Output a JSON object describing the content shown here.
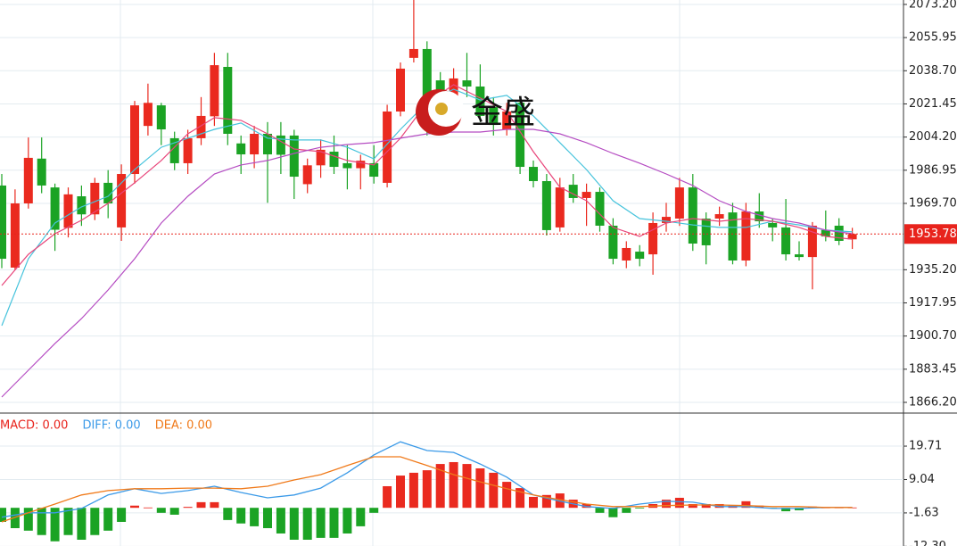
{
  "chart_data": [
    {
      "type": "candlestick",
      "open": [
        1979.0,
        1936.3,
        1969.7,
        1993.0,
        1978.0,
        1957.0,
        1973.4,
        1964.0,
        1980.4,
        1957.2,
        1985.0,
        2010.0,
        2020.7,
        2003.6,
        1990.6,
        2003.6,
        2015.0,
        2040.7,
        2000.9,
        1995.2,
        2005.9,
        2005.0,
        2005.0,
        1979.7,
        1989.5,
        1996.6,
        1990.6,
        1988.0,
        1990.6,
        1980.4,
        2017.5,
        2045.4,
        2050.0,
        2033.7,
        2018.4,
        2033.7,
        2030.5,
        2019.8,
        2008.2,
        2022.1,
        1988.7,
        1981.3,
        1957.2,
        1979.4,
        1972.5,
        1975.7,
        1958.1,
        1940.0,
        1944.6,
        1943.2,
        1959.5,
        1961.8,
        1978.0,
        1961.8,
        1961.8,
        1965.0,
        1940.0,
        1965.5,
        1959.5,
        1957.2,
        1943.2,
        1941.8,
        1955.9,
        1958.1,
        1951.0
      ],
      "high": [
        1985,
        1977,
        2004,
        2004,
        1980,
        1978,
        1979,
        1983,
        1987,
        1990,
        2023,
        2032,
        2022,
        2007,
        2008,
        2025,
        2048,
        2048,
        2005,
        2010,
        2012,
        2012,
        2008,
        1993,
        2003,
        2005,
        2000,
        1995,
        2000,
        2021,
        2043,
        2075.5,
        2054,
        2038,
        2040,
        2048,
        2042,
        2025,
        2022,
        2025,
        1992,
        1985,
        1983,
        1985,
        1980,
        1978,
        1962,
        1950,
        1948,
        1965,
        1970,
        1983,
        1985,
        1965,
        1968,
        1970,
        1970,
        1975,
        1962,
        1972,
        1950,
        1960,
        1966,
        1962,
        1957
      ],
      "low": [
        1936,
        1935,
        1967,
        1975,
        1945,
        1952,
        1958,
        1961,
        1962,
        1950.2,
        1980,
        2005,
        2000,
        1987,
        1985,
        2000,
        2010,
        2000,
        1985,
        1988,
        1970,
        1985,
        1972,
        1975,
        1983,
        1985,
        1977,
        1977,
        1980,
        1978,
        2015,
        2043,
        2005,
        2015,
        2015,
        2025,
        2012,
        2005,
        2005,
        1985,
        1978,
        1953,
        1955,
        1970,
        1958,
        1955,
        1938,
        1936,
        1937,
        1932.6,
        1955,
        1958,
        1945,
        1938,
        1958,
        1938,
        1937,
        1957,
        1950,
        1940,
        1940,
        1925,
        1950,
        1948,
        1946
      ],
      "close": [
        1940.9,
        1969.7,
        1993.4,
        1979.0,
        1956.0,
        1974.4,
        1964.0,
        1980.4,
        1969.7,
        1985.0,
        2020.7,
        2022.0,
        2008.2,
        1990.6,
        2003.6,
        2015.2,
        2041.6,
        2005.9,
        1995.2,
        2005.9,
        1995.2,
        1995.0,
        1983.6,
        1989.5,
        1997.6,
        1988.7,
        1988.0,
        1991.9,
        1983.6,
        2017.5,
        2039.8,
        2050.0,
        2010.5,
        2019.8,
        2034.7,
        2030.5,
        2015.2,
        2010.5,
        2017.5,
        1988.7,
        1981.3,
        1955.8,
        1978.0,
        1972.5,
        1975.7,
        1958.1,
        1940.9,
        1946.5,
        1940.9,
        1959.5,
        1962.7,
        1978.0,
        1948.8,
        1947.9,
        1964.1,
        1940.0,
        1965.5,
        1960.4,
        1957.2,
        1943.2,
        1941.8,
        1958.1,
        1952.5,
        1950.2,
        1953.78
      ],
      "up_color": "#ea2a1f",
      "down_color": "#1ba324",
      "moving_averages": [
        {
          "color": "#46c3dc",
          "values": [
            1906.1,
            1940.9,
            1959.5,
            1967.9,
            1973.4,
            1987.3,
            1998.9,
            2003.6,
            2008.2,
            2011.5,
            2003.6,
            2002.7,
            2002.7,
            1998.9,
            1992.9,
            2008.2,
            2022.1,
            2029.1,
            2023.5,
            2025.9,
            2015.2,
            2001.3,
            1987.3,
            1971.1,
            1961.8,
            1960.4,
            1958.5,
            1957.2,
            1957.2,
            1960.4,
            1958.5,
            1955.8,
            1954.9
          ]
        },
        {
          "color": "#e8457a",
          "values": [
            1927.0,
            1943.2,
            1953.9,
            1960.9,
            1969.7,
            1980.4,
            1992.0,
            2005.9,
            2014.3,
            2012.9,
            2005.9,
            1998.0,
            1996.6,
            1992.0,
            1989.7,
            2003.6,
            2022.1,
            2031.4,
            2024.5,
            2017.5,
            1996.6,
            1978.1,
            1971.1,
            1957.2,
            1952.5,
            1959.5,
            1961.8,
            1960.4,
            1961.8,
            1960.4,
            1957.2,
            1952.5,
            1951.1
          ]
        },
        {
          "color": "#b54cc2",
          "values": [
            1869.0,
            1882.9,
            1896.8,
            1909.8,
            1924.7,
            1940.9,
            1959.5,
            1973.4,
            1985.0,
            1989.7,
            1992.0,
            1995.7,
            1998.9,
            2000.3,
            2001.3,
            2003.6,
            2005.9,
            2006.8,
            2006.8,
            2008.2,
            2008.2,
            2005.9,
            2001.3,
            1995.7,
            1990.6,
            1985.0,
            1979.0,
            1971.1,
            1965.5,
            1961.8,
            1959.5,
            1955.8,
            1953.9
          ]
        }
      ],
      "ylim": [
        1861.1,
        2075.5
      ],
      "yticks": [
        {
          "value": 2073.2,
          "label": "2073.20"
        },
        2055.95,
        {
          "value": 2038.7,
          "label": "2038.70"
        },
        2021.45,
        {
          "value": 2004.2,
          "label": "2004.20"
        },
        1986.95,
        {
          "value": 1969.7,
          "label": "1969.70"
        },
        {
          "value": 1935.2,
          "label": "1935.20"
        },
        1917.95,
        {
          "value": 1900.7,
          "label": "1900.70"
        },
        1883.45,
        {
          "value": 1866.2,
          "label": "1866.20"
        }
      ],
      "grid": true,
      "last_price": 1953.78,
      "last_price_color": "#e8231c",
      "watermark": "金盛"
    },
    {
      "type": "macd",
      "legend": [
        {
          "text": "MACD: 0.00",
          "color": "#e8231c"
        },
        {
          "text": "DIFF: 0.00",
          "color": "#3b9ae8"
        },
        {
          "text": "DEA: 0.00",
          "color": "#f07a1a"
        }
      ],
      "histogram": [
        -4.5,
        -6.5,
        -7.3,
        -8.7,
        -10.7,
        -8.7,
        -10.2,
        -8.7,
        -7.3,
        -4.5,
        0.7,
        0.1,
        -1.6,
        -2.2,
        0.3,
        1.8,
        1.8,
        -3.9,
        -5.0,
        -5.9,
        -6.5,
        -8.2,
        -10.2,
        -10.2,
        -9.6,
        -9.6,
        -8.2,
        -5.9,
        -1.6,
        6.9,
        10.3,
        11.2,
        12.0,
        14.0,
        14.6,
        14.0,
        12.6,
        11.2,
        8.3,
        6.3,
        3.5,
        4.1,
        4.6,
        2.6,
        1.2,
        -1.6,
        -3.0,
        -1.6,
        -0.2,
        1.2,
        2.6,
        3.2,
        1.2,
        1.2,
        1.2,
        0.7,
        2.1,
        0.7,
        -0.2,
        -1.1,
        -0.8,
        0.4,
        0.1,
        0.1,
        0.1
      ],
      "up_color": "#ea2a1f",
      "down_color": "#1ba324",
      "diff": {
        "color": "#3b9ae8",
        "values": [
          -3.0,
          -1.6,
          -1.6,
          -0.2,
          4.1,
          6.1,
          4.6,
          5.5,
          6.9,
          4.9,
          3.2,
          4.1,
          6.3,
          11.2,
          16.9,
          21.1,
          18.3,
          17.7,
          14.0,
          9.8,
          4.1,
          2.1,
          0.4,
          -0.2,
          1.2,
          2.1,
          1.8,
          0.4,
          0.4,
          -0.2,
          -0.2,
          0.1,
          0.1
        ]
      },
      "dea": {
        "color": "#f07a1a",
        "values": [
          -4.5,
          -1.6,
          1.2,
          4.1,
          5.5,
          6.1,
          6.1,
          6.3,
          6.3,
          6.1,
          6.9,
          8.9,
          10.6,
          13.5,
          16.3,
          16.3,
          13.5,
          10.6,
          8.3,
          6.1,
          4.1,
          2.6,
          1.2,
          0.4,
          0.4,
          0.7,
          0.9,
          0.9,
          0.7,
          0.4,
          0.4,
          0.1,
          0.1
        ]
      },
      "ylim": [
        -12.2,
        29.7
      ],
      "yticks": [
        19.71,
        9.04,
        -1.63,
        {
          "value": -12.3,
          "label": "-12.30"
        }
      ],
      "grid": true
    }
  ]
}
